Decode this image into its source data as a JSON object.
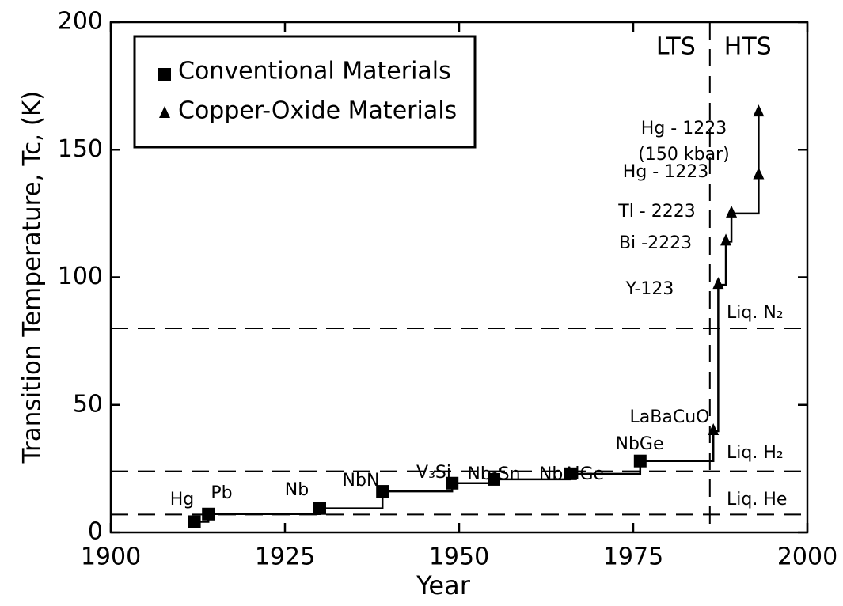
{
  "chart_data": {
    "type": "step",
    "xlabel": "Year",
    "ylabel": "Transition Temperature, Tc, (K)",
    "xlim": [
      1900,
      2000
    ],
    "xticks": [
      1900,
      1925,
      1950,
      1975,
      2000
    ],
    "ylim": [
      0,
      200
    ],
    "yticks": [
      0,
      50,
      100,
      150,
      200
    ],
    "series": [
      {
        "name": "Conventional Materials",
        "marker": "square",
        "color": "#000000",
        "x": [
          1912,
          1914,
          1930,
          1939,
          1949,
          1955,
          1966,
          1976
        ],
        "values": [
          4.2,
          7.2,
          9.4,
          16.1,
          19.3,
          20.8,
          23,
          28
        ],
        "labels": [
          "Hg",
          "Pb",
          "Nb",
          "NbN",
          "V₃Si",
          "Nb₃Sn",
          "NbAlGe",
          "NbGe"
        ]
      },
      {
        "name": "Copper-Oxide Materials",
        "marker": "triangle",
        "color": "#000000",
        "x": [
          1986.5,
          1987.2,
          1988.3,
          1989.1,
          1993,
          1993
        ],
        "values": [
          39.7,
          97,
          114,
          125,
          140,
          164.6
        ],
        "labels": [
          "LaBaCuO",
          "Y-123",
          "Bi -2223",
          "Tl - 2223",
          "Hg - 1223",
          [
            "Hg - 1223",
            "(150 kbar)"
          ]
        ]
      }
    ],
    "reference_lines": [
      {
        "label": "Liq. N₂",
        "value": 80
      },
      {
        "label": "Liq. H₂",
        "value": 24
      },
      {
        "label": "Liq. He",
        "value": 7
      }
    ],
    "divider": {
      "value": 1986,
      "left_label": "LTS",
      "right_label": "HTS"
    },
    "legend": "upper left"
  }
}
